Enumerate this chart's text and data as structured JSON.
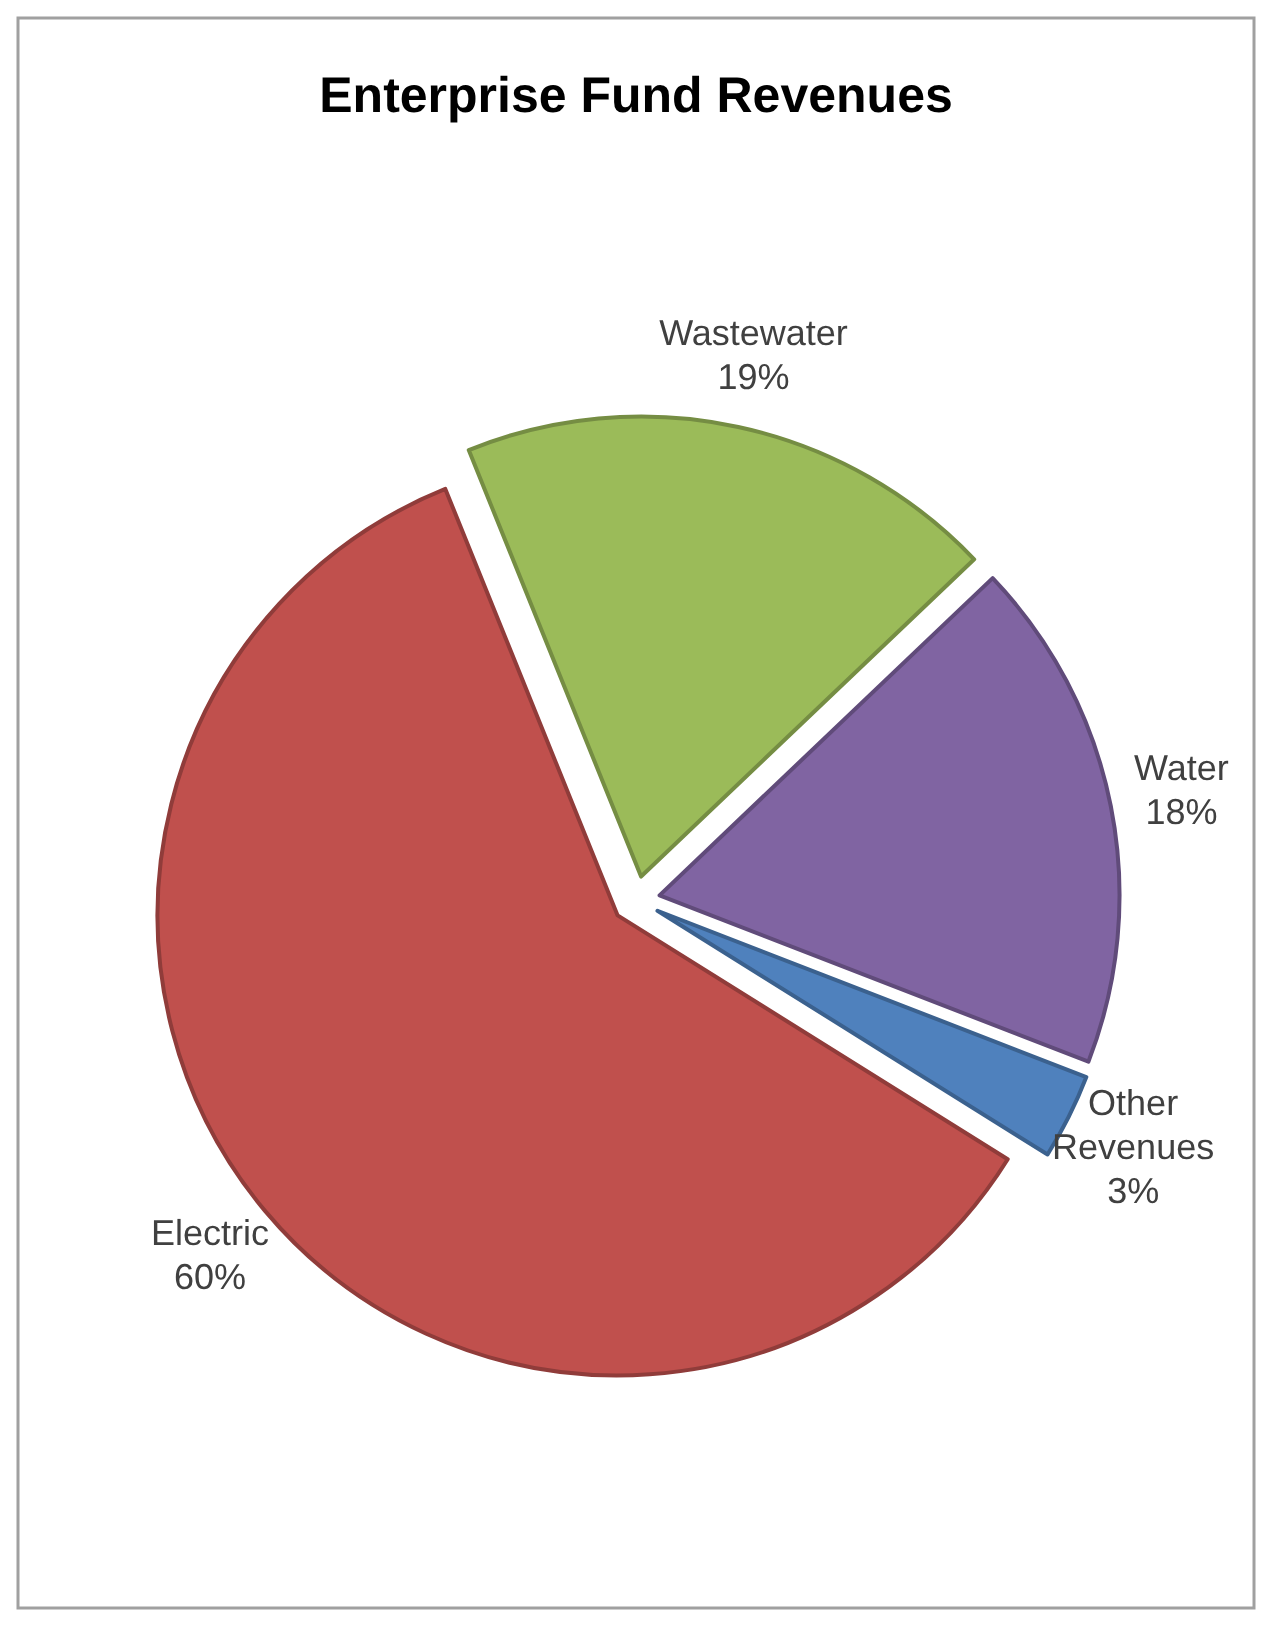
{
  "chart_data": {
    "type": "pie",
    "title": "Enterprise Fund Revenues",
    "categories": [
      "Wastewater",
      "Water",
      "Other Revenues",
      "Electric"
    ],
    "values": [
      19,
      18,
      3,
      60
    ],
    "colors": [
      "#9bbb59",
      "#8064a2",
      "#4f81bd",
      "#c0504d"
    ],
    "value_labels": [
      "19%",
      "18%",
      "3%",
      "60%"
    ]
  }
}
